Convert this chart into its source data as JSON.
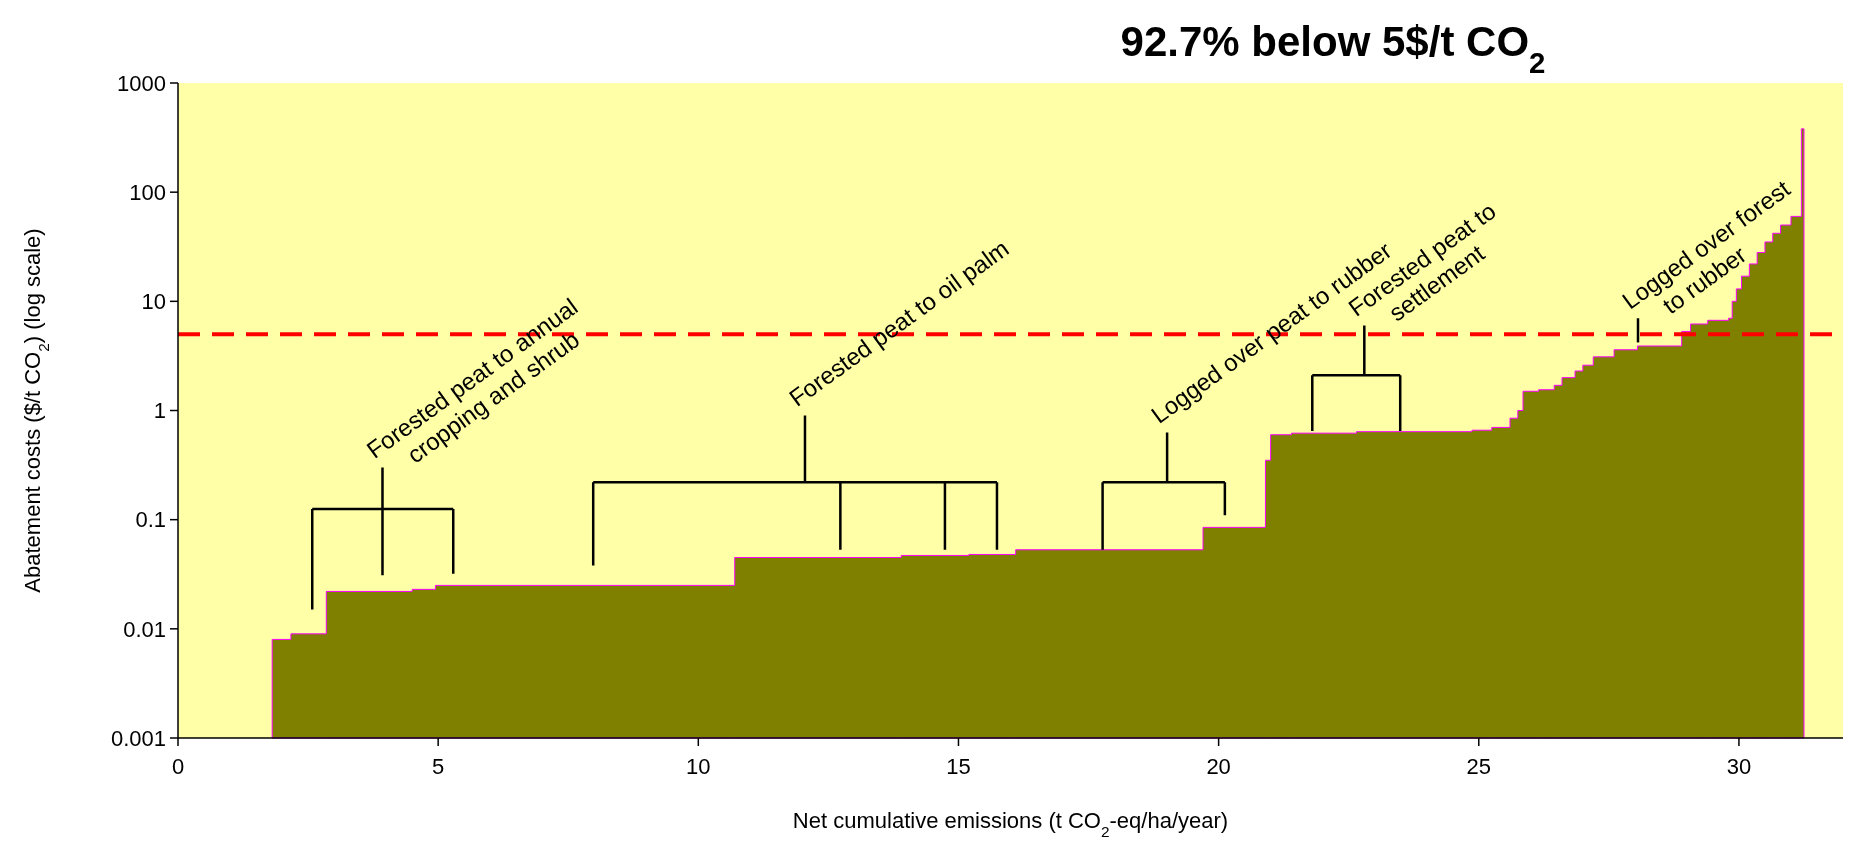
{
  "chart_data": {
    "type": "area",
    "title": "92.7% below 5$/t CO$_{2}$",
    "xlabel": "Net cumulative emissions (t CO$_{2}$-eq/ha/year)",
    "ylabel": "Abatement costs ($/t CO$_{2}$) (log scale)",
    "x": [
      1.81,
      2.17,
      2.85,
      4.5,
      4.95,
      5.65,
      10.7,
      13.9,
      15.2,
      16.1,
      19.7,
      20.9,
      21.0,
      21.4,
      22.65,
      24.87,
      25.25,
      25.6,
      25.75,
      25.85,
      26.15,
      26.45,
      26.6,
      26.85,
      27.0,
      27.2,
      27.6,
      28.05,
      28.9,
      29.07,
      29.4,
      29.8,
      29.87,
      29.95,
      30.05,
      30.2,
      30.35,
      30.5,
      30.65,
      30.8,
      31.0,
      31.2,
      31.25
    ],
    "series": [
      {
        "color": "#808000",
        "values": [
          0.008,
          0.009,
          0.022,
          0.023,
          0.025,
          0.025,
          0.045,
          0.047,
          0.048,
          0.053,
          0.085,
          0.35,
          0.6,
          0.62,
          0.64,
          0.66,
          0.7,
          0.85,
          1.0,
          1.5,
          1.55,
          1.7,
          2.0,
          2.3,
          2.6,
          3.1,
          3.6,
          3.9,
          5.3,
          6.2,
          6.7,
          7,
          10,
          13,
          17,
          22,
          28,
          35,
          42,
          50,
          60,
          380,
          380
        ]
      }
    ],
    "xlim": [
      0,
      32
    ],
    "xticks": [
      0,
      5,
      10,
      15,
      20,
      25,
      30
    ],
    "ylim": [
      0.001,
      1000
    ],
    "yticks": [
      0.001,
      0.01,
      0.1,
      1,
      10,
      100,
      1000
    ],
    "log": "y",
    "grid": false,
    "ref_lines": [
      {
        "axis": "y",
        "value": 5,
        "color": "#ff0000",
        "line_style": "dashed"
      }
    ],
    "annotations": [
      "Forested peat to annual\ncropping and shrub",
      "Forested peat to oil palm",
      "Logged over peat to rubber",
      "Forested peat to\nsettlement",
      "Logged over forest\nto rubber"
    ]
  }
}
